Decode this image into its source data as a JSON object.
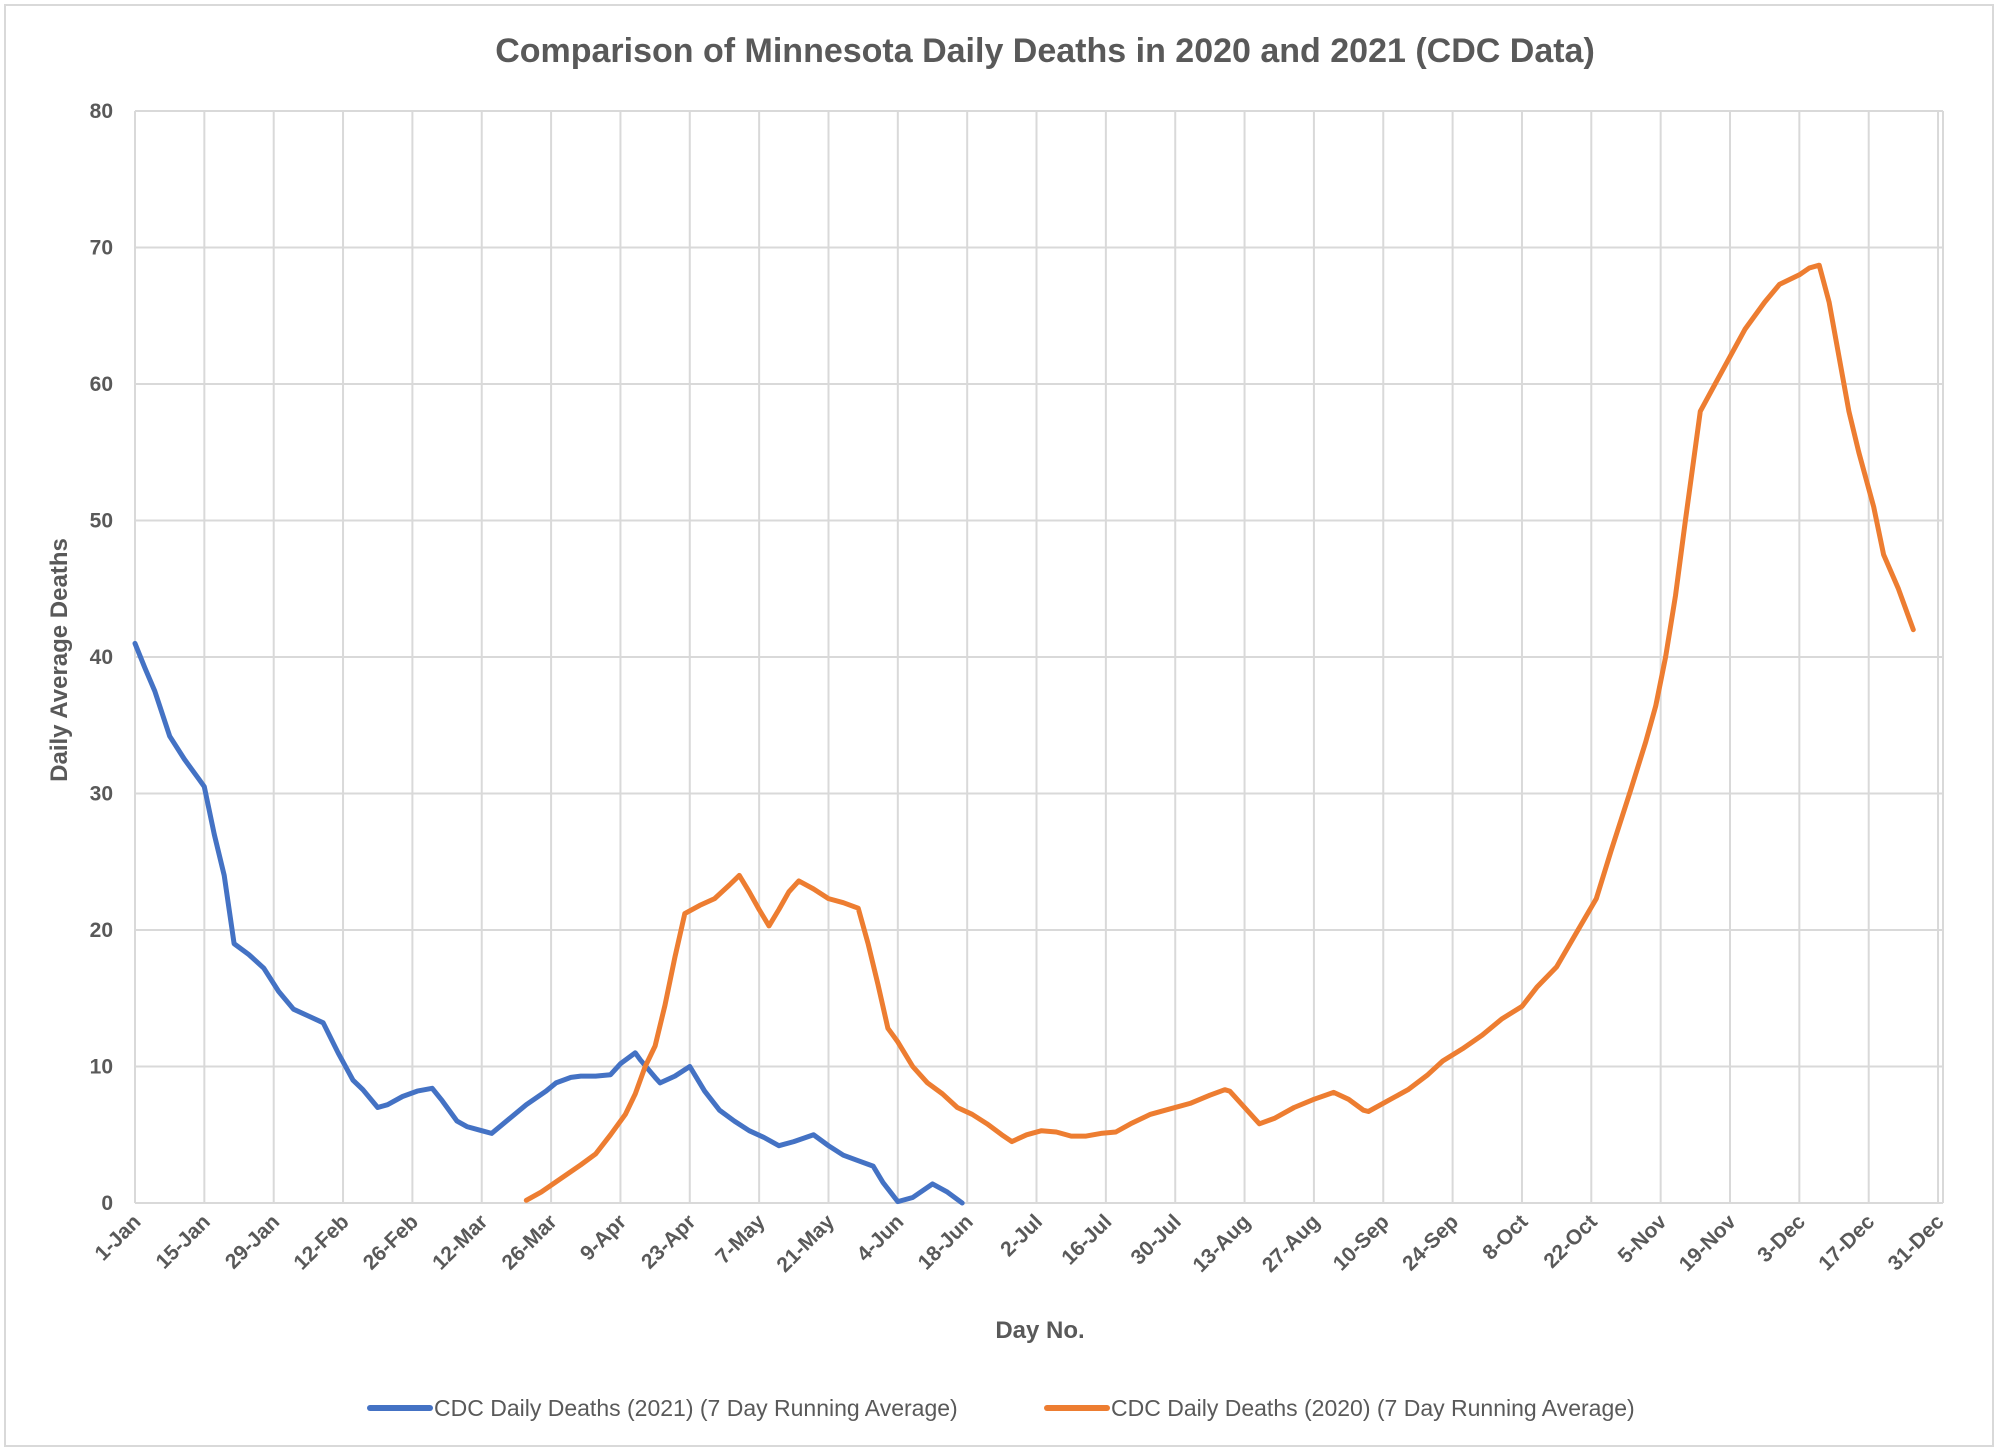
{
  "chart_data": {
    "type": "line",
    "title": "Comparison of Minnesota Daily Deaths in 2020 and 2021 (CDC Data)",
    "xlabel": "Day No.",
    "ylabel": "Daily Average Deaths",
    "xlim": [
      1,
      366
    ],
    "ylim": [
      0,
      80
    ],
    "yticks": [
      0,
      10,
      20,
      30,
      40,
      50,
      60,
      70,
      80
    ],
    "xticks": [
      {
        "day": 1,
        "label": "1-Jan"
      },
      {
        "day": 15,
        "label": "15-Jan"
      },
      {
        "day": 29,
        "label": "29-Jan"
      },
      {
        "day": 43,
        "label": "12-Feb"
      },
      {
        "day": 57,
        "label": "26-Feb"
      },
      {
        "day": 71,
        "label": "12-Mar"
      },
      {
        "day": 85,
        "label": "26-Mar"
      },
      {
        "day": 99,
        "label": "9-Apr"
      },
      {
        "day": 113,
        "label": "23-Apr"
      },
      {
        "day": 127,
        "label": "7-May"
      },
      {
        "day": 141,
        "label": "21-May"
      },
      {
        "day": 155,
        "label": "4-Jun"
      },
      {
        "day": 169,
        "label": "18-Jun"
      },
      {
        "day": 183,
        "label": "2-Jul"
      },
      {
        "day": 197,
        "label": "16-Jul"
      },
      {
        "day": 211,
        "label": "30-Jul"
      },
      {
        "day": 225,
        "label": "13-Aug"
      },
      {
        "day": 239,
        "label": "27-Aug"
      },
      {
        "day": 253,
        "label": "10-Sep"
      },
      {
        "day": 267,
        "label": "24-Sep"
      },
      {
        "day": 281,
        "label": "8-Oct"
      },
      {
        "day": 295,
        "label": "22-Oct"
      },
      {
        "day": 309,
        "label": "5-Nov"
      },
      {
        "day": 323,
        "label": "19-Nov"
      },
      {
        "day": 337,
        "label": "3-Dec"
      },
      {
        "day": 351,
        "label": "17-Dec"
      },
      {
        "day": 365,
        "label": "31-Dec"
      }
    ],
    "grid": true,
    "legend_position": "bottom",
    "series": [
      {
        "name": "CDC Daily Deaths (2021) (7 Day Running Average)",
        "color": "#4472c4",
        "points": [
          [
            1,
            41
          ],
          [
            3,
            39.2
          ],
          [
            5,
            37.5
          ],
          [
            8,
            34.2
          ],
          [
            11,
            32.5
          ],
          [
            14,
            31
          ],
          [
            15,
            30.5
          ],
          [
            17,
            27
          ],
          [
            19,
            24
          ],
          [
            21,
            19
          ],
          [
            24,
            18.2
          ],
          [
            27,
            17.2
          ],
          [
            30,
            15.5
          ],
          [
            33,
            14.2
          ],
          [
            36,
            13.7
          ],
          [
            39,
            13.2
          ],
          [
            42,
            11
          ],
          [
            45,
            9
          ],
          [
            47,
            8.3
          ],
          [
            50,
            7
          ],
          [
            52,
            7.2
          ],
          [
            55,
            7.8
          ],
          [
            58,
            8.2
          ],
          [
            61,
            8.4
          ],
          [
            63,
            7.5
          ],
          [
            66,
            6
          ],
          [
            68,
            5.6
          ],
          [
            71,
            5.3
          ],
          [
            73,
            5.1
          ],
          [
            76,
            6
          ],
          [
            80,
            7.2
          ],
          [
            84,
            8.2
          ],
          [
            86,
            8.8
          ],
          [
            89,
            9.2
          ],
          [
            91,
            9.3
          ],
          [
            94,
            9.3
          ],
          [
            97,
            9.4
          ],
          [
            99,
            10.2
          ],
          [
            102,
            11
          ],
          [
            103,
            10.5
          ],
          [
            106,
            9.2
          ],
          [
            107,
            8.8
          ],
          [
            110,
            9.3
          ],
          [
            113,
            10
          ],
          [
            116,
            8.2
          ],
          [
            119,
            6.8
          ],
          [
            122,
            6
          ],
          [
            125,
            5.3
          ],
          [
            128,
            4.8
          ],
          [
            131,
            4.2
          ],
          [
            134,
            4.5
          ],
          [
            138,
            5
          ],
          [
            141,
            4.2
          ],
          [
            144,
            3.5
          ],
          [
            147,
            3.1
          ],
          [
            150,
            2.7
          ],
          [
            152,
            1.5
          ],
          [
            155,
            0.1
          ],
          [
            158,
            0.4
          ],
          [
            162,
            1.4
          ],
          [
            165,
            0.8
          ],
          [
            168,
            0
          ]
        ]
      },
      {
        "name": "CDC Daily Deaths (2020) (7 Day Running Average)",
        "color": "#ed7d31",
        "points": [
          [
            80,
            0.2
          ],
          [
            83,
            0.8
          ],
          [
            87,
            1.8
          ],
          [
            91,
            2.8
          ],
          [
            94,
            3.6
          ],
          [
            97,
            5
          ],
          [
            100,
            6.5
          ],
          [
            102,
            8
          ],
          [
            104,
            10
          ],
          [
            106,
            11.5
          ],
          [
            108,
            14.5
          ],
          [
            110,
            18
          ],
          [
            112,
            21.2
          ],
          [
            115,
            21.8
          ],
          [
            118,
            22.3
          ],
          [
            121,
            23.3
          ],
          [
            123,
            24
          ],
          [
            125,
            22.8
          ],
          [
            127,
            21.5
          ],
          [
            129,
            20.3
          ],
          [
            131,
            21.5
          ],
          [
            133,
            22.8
          ],
          [
            135,
            23.6
          ],
          [
            138,
            23
          ],
          [
            141,
            22.3
          ],
          [
            144,
            22
          ],
          [
            147,
            21.6
          ],
          [
            149,
            19
          ],
          [
            151,
            16
          ],
          [
            153,
            12.8
          ],
          [
            155,
            11.8
          ],
          [
            158,
            10
          ],
          [
            161,
            8.8
          ],
          [
            164,
            8
          ],
          [
            167,
            7
          ],
          [
            170,
            6.5
          ],
          [
            173,
            5.8
          ],
          [
            176,
            5
          ],
          [
            178,
            4.5
          ],
          [
            181,
            5
          ],
          [
            184,
            5.3
          ],
          [
            187,
            5.2
          ],
          [
            190,
            4.9
          ],
          [
            193,
            4.9
          ],
          [
            196,
            5.1
          ],
          [
            199,
            5.2
          ],
          [
            202,
            5.8
          ],
          [
            206,
            6.5
          ],
          [
            210,
            6.9
          ],
          [
            214,
            7.3
          ],
          [
            218,
            7.9
          ],
          [
            221,
            8.3
          ],
          [
            222,
            8.2
          ],
          [
            225,
            7
          ],
          [
            228,
            5.8
          ],
          [
            231,
            6.2
          ],
          [
            235,
            7
          ],
          [
            239,
            7.6
          ],
          [
            243,
            8.1
          ],
          [
            246,
            7.6
          ],
          [
            249,
            6.8
          ],
          [
            250,
            6.7
          ],
          [
            254,
            7.5
          ],
          [
            258,
            8.3
          ],
          [
            262,
            9.4
          ],
          [
            265,
            10.4
          ],
          [
            269,
            11.3
          ],
          [
            273,
            12.3
          ],
          [
            277,
            13.5
          ],
          [
            281,
            14.4
          ],
          [
            284,
            15.8
          ],
          [
            288,
            17.3
          ],
          [
            292,
            19.8
          ],
          [
            296,
            22.3
          ],
          [
            299,
            25.8
          ],
          [
            303,
            30.3
          ],
          [
            306,
            33.8
          ],
          [
            308,
            36.4
          ],
          [
            310,
            40
          ],
          [
            312,
            44.5
          ],
          [
            314,
            50
          ],
          [
            317,
            58
          ],
          [
            320,
            60
          ],
          [
            323,
            62
          ],
          [
            326,
            64
          ],
          [
            330,
            66
          ],
          [
            333,
            67.3
          ],
          [
            337,
            68
          ],
          [
            339,
            68.5
          ],
          [
            341,
            68.7
          ],
          [
            343,
            66
          ],
          [
            345,
            62
          ],
          [
            347,
            58
          ],
          [
            349,
            55
          ],
          [
            352,
            51
          ],
          [
            354,
            47.5
          ],
          [
            357,
            45
          ],
          [
            360,
            42
          ]
        ]
      }
    ]
  }
}
